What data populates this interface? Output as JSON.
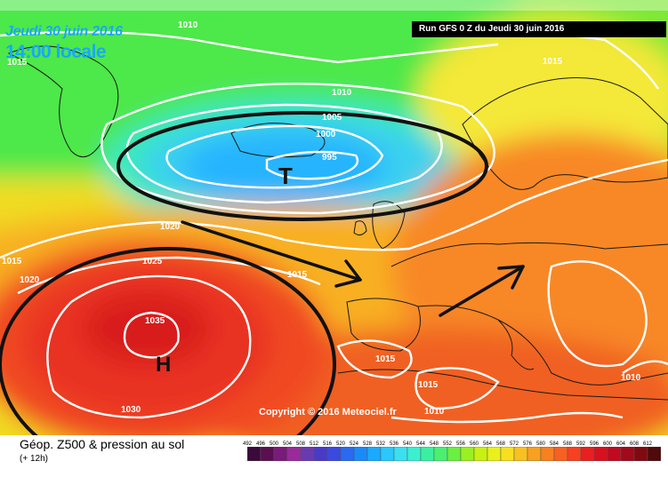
{
  "header": {
    "date_text": "Jeudi 30 juin 2016",
    "time_text": "14:00 locale",
    "run_text": "Run GFS 0 Z du Jeudi 30 juin 2016"
  },
  "pressure_labels": [
    "1010",
    "1015",
    "1010",
    "1005",
    "1000",
    "995",
    "1015",
    "1020",
    "1015",
    "1020",
    "1025",
    "1015",
    "1035",
    "1015",
    "1030",
    "1015",
    "1010",
    "1010"
  ],
  "systems": {
    "low": "T",
    "high": "H"
  },
  "copyright": "Copyright © 2016 Meteociel.fr",
  "footer": {
    "title": "Géop. Z500 & pression au sol",
    "subtitle": "(+ 12h)"
  },
  "legend": {
    "labels": [
      "492",
      "496",
      "500",
      "504",
      "508",
      "512",
      "516",
      "520",
      "524",
      "528",
      "532",
      "536",
      "540",
      "544",
      "548",
      "552",
      "556",
      "560",
      "564",
      "568",
      "572",
      "576",
      "580",
      "584",
      "588",
      "592",
      "596",
      "600",
      "604",
      "608",
      "612"
    ],
    "colors": [
      "#3a0a3a",
      "#5a1050",
      "#7a1a7a",
      "#9a2a9a",
      "#6a3ab0",
      "#4a3ac8",
      "#3a4ae0",
      "#2a6af0",
      "#1a8af8",
      "#1aaaff",
      "#2ac8ff",
      "#3ae0f0",
      "#3af0d0",
      "#3af0a0",
      "#4af070",
      "#6af040",
      "#9af020",
      "#c8f010",
      "#eaf01a",
      "#f8e020",
      "#f8c020",
      "#f8a020",
      "#f88020",
      "#f86020",
      "#f84020",
      "#e82020",
      "#d81020",
      "#c00a20",
      "#a00a1a",
      "#800a10",
      "#500a0a"
    ]
  }
}
